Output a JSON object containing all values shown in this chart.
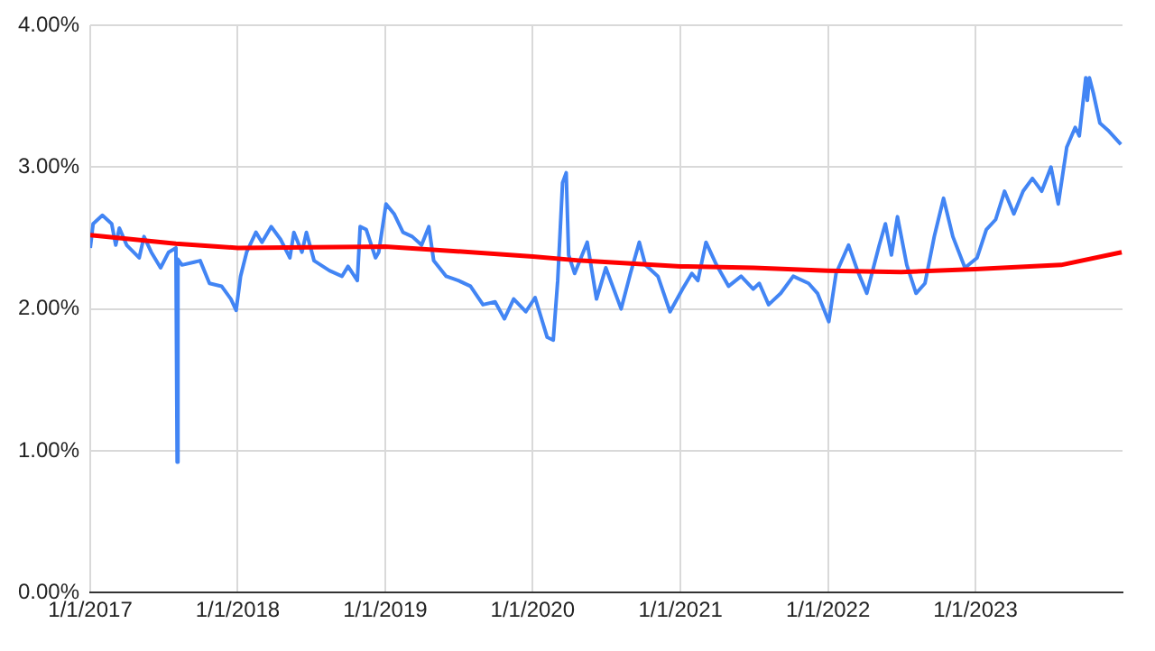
{
  "chart_data": {
    "type": "line",
    "xlim": [
      "2017-01-01",
      "2023-12-31"
    ],
    "ylim": [
      0,
      4
    ],
    "xticks": [
      {
        "value": "2017-01-01",
        "label": "1/1/2017"
      },
      {
        "value": "2018-01-01",
        "label": "1/1/2018"
      },
      {
        "value": "2019-01-01",
        "label": "1/1/2019"
      },
      {
        "value": "2020-01-01",
        "label": "1/1/2020"
      },
      {
        "value": "2021-01-01",
        "label": "1/1/2021"
      },
      {
        "value": "2022-01-01",
        "label": "1/1/2022"
      },
      {
        "value": "2023-01-01",
        "label": "1/1/2023"
      }
    ],
    "yticks": [
      {
        "value": 0,
        "label": "0.00%"
      },
      {
        "value": 1,
        "label": "1.00%"
      },
      {
        "value": 2,
        "label": "2.00%"
      },
      {
        "value": 3,
        "label": "3.00%"
      },
      {
        "value": 4,
        "label": "4.00%"
      }
    ],
    "grid": true,
    "marker": "none",
    "line_style": "solid",
    "series": [
      {
        "color": "#4285f4",
        "x": [
          "2017-01-01",
          "2017-01-08",
          "2017-01-31",
          "2017-02-23",
          "2017-03-05",
          "2017-03-14",
          "2017-04-01",
          "2017-05-02",
          "2017-05-14",
          "2017-06-01",
          "2017-06-24",
          "2017-07-14",
          "2017-08-01",
          "2017-08-04",
          "2017-08-06",
          "2017-08-16",
          "2017-09-15",
          "2017-09-30",
          "2017-10-23",
          "2017-11-22",
          "2017-12-15",
          "2017-12-28",
          "2018-01-08",
          "2018-01-23",
          "2018-02-15",
          "2018-03-02",
          "2018-03-25",
          "2018-04-17",
          "2018-05-10",
          "2018-05-20",
          "2018-06-09",
          "2018-06-20",
          "2018-07-09",
          "2018-08-16",
          "2018-09-16",
          "2018-10-01",
          "2018-10-24",
          "2018-10-31",
          "2018-11-15",
          "2018-12-08",
          "2018-12-16",
          "2019-01-03",
          "2019-01-23",
          "2019-02-14",
          "2019-03-09",
          "2019-04-01",
          "2019-04-19",
          "2019-05-01",
          "2019-06-01",
          "2019-07-01",
          "2019-07-31",
          "2019-08-31",
          "2019-09-30",
          "2019-10-23",
          "2019-11-15",
          "2019-12-15",
          "2020-01-07",
          "2020-02-06",
          "2020-02-21",
          "2020-03-03",
          "2020-03-15",
          "2020-03-24",
          "2020-03-30",
          "2020-04-14",
          "2020-05-15",
          "2020-06-07",
          "2020-06-30",
          "2020-08-07",
          "2020-08-30",
          "2020-09-21",
          "2020-10-06",
          "2020-11-06",
          "2020-12-06",
          "2021-01-06",
          "2021-01-29",
          "2021-02-13",
          "2021-03-05",
          "2021-03-31",
          "2021-04-30",
          "2021-05-31",
          "2021-06-30",
          "2021-07-15",
          "2021-08-07",
          "2021-09-06",
          "2021-10-07",
          "2021-11-14",
          "2021-12-06",
          "2022-01-03",
          "2022-01-21",
          "2022-02-21",
          "2022-03-15",
          "2022-04-07",
          "2022-05-08",
          "2022-05-23",
          "2022-06-07",
          "2022-06-22",
          "2022-07-15",
          "2022-08-07",
          "2022-08-29",
          "2022-09-21",
          "2022-10-14",
          "2022-11-06",
          "2022-12-06",
          "2023-01-05",
          "2023-01-28",
          "2023-02-20",
          "2023-03-14",
          "2023-04-06",
          "2023-04-29",
          "2023-05-22",
          "2023-06-14",
          "2023-07-07",
          "2023-07-25",
          "2023-08-15",
          "2023-09-05",
          "2023-09-15",
          "2023-10-01",
          "2023-10-05",
          "2023-10-10",
          "2023-10-20",
          "2023-11-05",
          "2023-11-25",
          "2023-12-27"
        ],
        "values": [
          2.43,
          2.6,
          2.66,
          2.6,
          2.45,
          2.57,
          2.45,
          2.36,
          2.51,
          2.4,
          2.29,
          2.4,
          2.43,
          0.92,
          2.35,
          2.31,
          2.33,
          2.34,
          2.18,
          2.16,
          2.07,
          1.99,
          2.23,
          2.4,
          2.54,
          2.47,
          2.58,
          2.49,
          2.36,
          2.54,
          2.4,
          2.54,
          2.34,
          2.27,
          2.23,
          2.3,
          2.2,
          2.58,
          2.56,
          2.36,
          2.4,
          2.74,
          2.67,
          2.54,
          2.51,
          2.45,
          2.58,
          2.34,
          2.23,
          2.2,
          2.16,
          2.03,
          2.05,
          1.93,
          2.07,
          1.98,
          2.08,
          1.8,
          1.78,
          2.2,
          2.89,
          2.96,
          2.38,
          2.25,
          2.47,
          2.07,
          2.29,
          2.0,
          2.25,
          2.47,
          2.31,
          2.23,
          1.98,
          2.14,
          2.25,
          2.2,
          2.47,
          2.31,
          2.16,
          2.23,
          2.14,
          2.18,
          2.03,
          2.11,
          2.23,
          2.18,
          2.11,
          1.91,
          2.25,
          2.45,
          2.27,
          2.11,
          2.45,
          2.6,
          2.38,
          2.65,
          2.31,
          2.11,
          2.18,
          2.51,
          2.78,
          2.51,
          2.29,
          2.36,
          2.56,
          2.63,
          2.83,
          2.67,
          2.83,
          2.92,
          2.83,
          3.0,
          2.74,
          3.14,
          3.28,
          3.22,
          3.63,
          3.47,
          3.63,
          3.52,
          3.31,
          3.26,
          3.16
        ]
      },
      {
        "color": "#ff0000",
        "x": [
          "2017-01-01",
          "2017-08-01",
          "2018-01-01",
          "2019-01-01",
          "2020-01-01",
          "2020-05-01",
          "2021-01-01",
          "2021-07-01",
          "2022-01-01",
          "2022-07-01",
          "2023-01-01",
          "2023-08-01",
          "2023-12-29"
        ],
        "values": [
          2.52,
          2.46,
          2.43,
          2.44,
          2.37,
          2.34,
          2.3,
          2.29,
          2.27,
          2.26,
          2.28,
          2.31,
          2.4
        ]
      }
    ]
  }
}
